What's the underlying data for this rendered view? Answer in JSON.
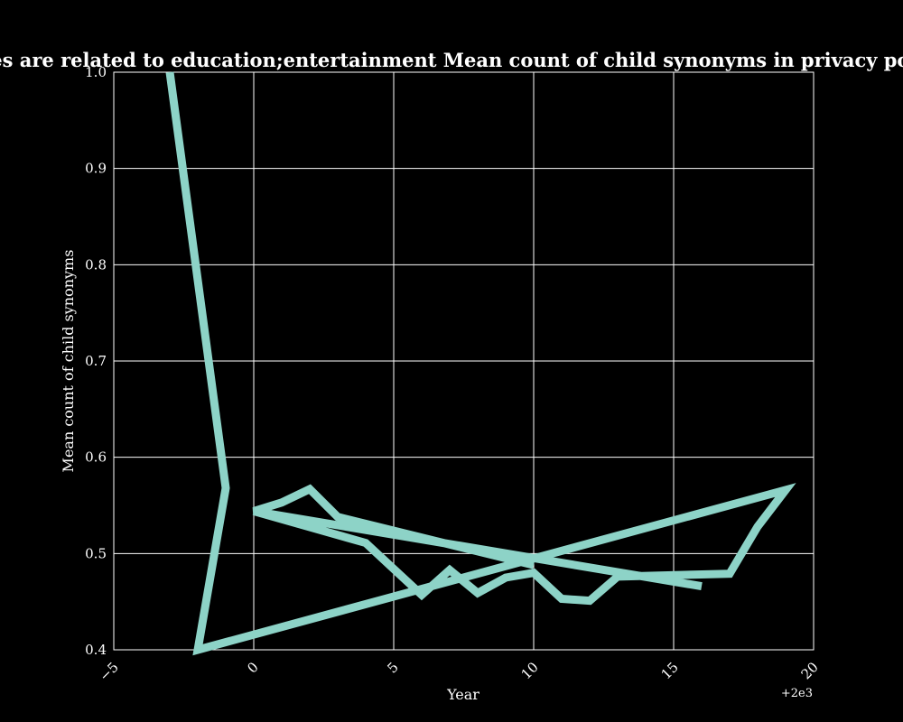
{
  "chart_data": {
    "type": "line",
    "title": "...hen categories are related to education;entertainment Mean count of child synonyms in privacy policies by year...",
    "xlabel": "Year",
    "ylabel": "Mean count of child synonyms",
    "x_offset_label": "+2e3",
    "xlim": [
      1995,
      2020
    ],
    "ylim": [
      0.4,
      1.0
    ],
    "x_tick_labels": [
      "−5",
      "0",
      "5",
      "10",
      "15",
      "20"
    ],
    "y_tick_labels": [
      "0.4",
      "0.5",
      "0.6",
      "0.7",
      "0.8",
      "0.9",
      "1.0"
    ],
    "grid": true,
    "series": [
      {
        "color": "#8dd3c7",
        "x": [
          1997,
          1999,
          1998,
          2019,
          2018,
          2017,
          2013,
          2012,
          2011,
          2010,
          2009,
          2008,
          2007,
          2006,
          2004,
          2000,
          2016,
          2000,
          2001,
          2002,
          2003,
          2010
        ],
        "y": [
          1.0,
          0.568,
          0.4,
          0.566,
          0.528,
          0.479,
          0.476,
          0.451,
          0.453,
          0.48,
          0.475,
          0.459,
          0.483,
          0.457,
          0.511,
          0.544,
          0.466,
          0.544,
          0.553,
          0.567,
          0.538,
          0.488
        ]
      }
    ]
  }
}
